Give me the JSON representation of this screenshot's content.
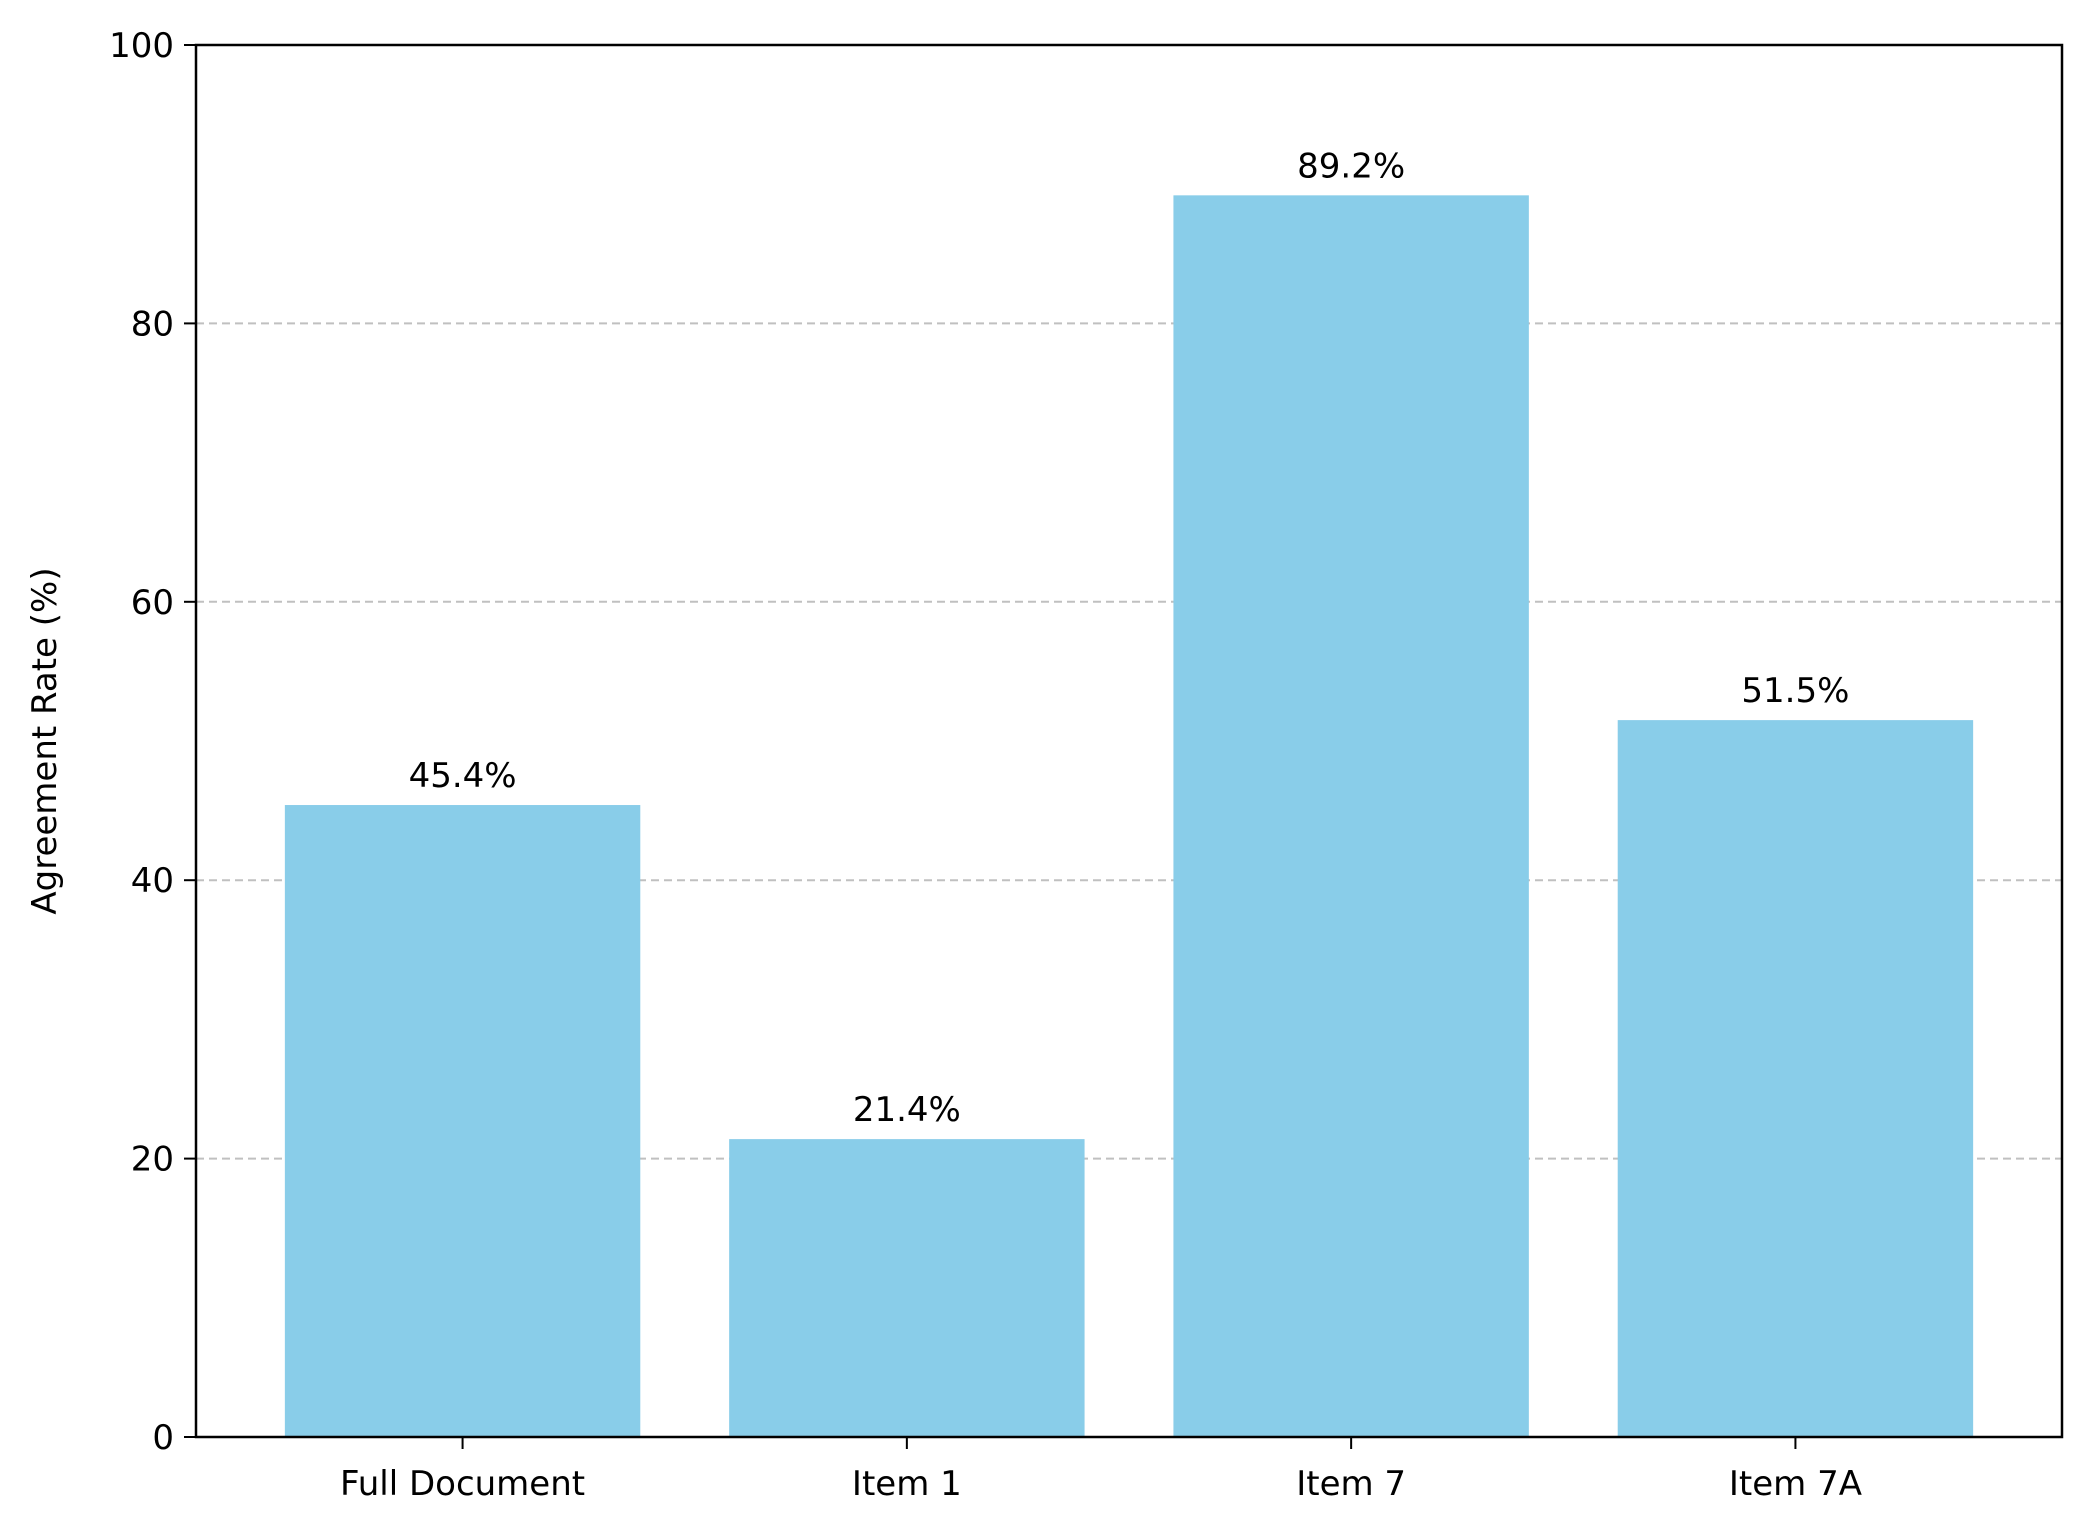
{
  "chart_data": {
    "type": "bar",
    "title": "",
    "xlabel": "",
    "ylabel": "Agreement Rate (%)",
    "categories": [
      "Full Document",
      "Item 1",
      "Item 7",
      "Item 7A"
    ],
    "values": [
      45.4,
      21.4,
      89.2,
      51.5
    ],
    "value_labels": [
      "45.4%",
      "21.4%",
      "89.2%",
      "51.5%"
    ],
    "ylim": [
      0,
      100
    ],
    "yticks": [
      0,
      20,
      40,
      60,
      80,
      100
    ],
    "ytick_labels": [
      "0",
      "20",
      "40",
      "60",
      "80",
      "100"
    ],
    "grid": "horizontal dashed",
    "colors": {
      "bar": "#89CDE9",
      "grid": "#C0C0C0",
      "axis": "#000000"
    }
  }
}
